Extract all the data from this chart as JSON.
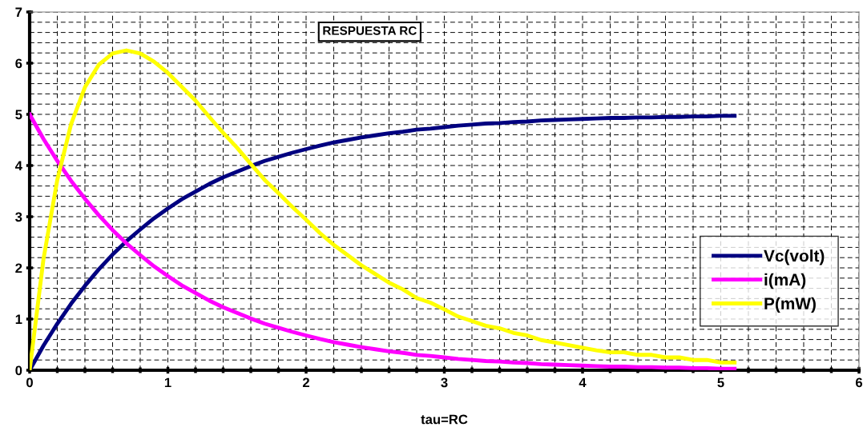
{
  "chart_data": {
    "type": "line",
    "title": "RESPUESTA RC",
    "xlabel": "tau=RC",
    "x": [
      0,
      0.1,
      0.2,
      0.3,
      0.4,
      0.5,
      0.6,
      0.7,
      0.8,
      0.9,
      1.0,
      1.1,
      1.2,
      1.3,
      1.4,
      1.5,
      1.6,
      1.7,
      1.8,
      1.9,
      2.0,
      2.1,
      2.2,
      2.3,
      2.4,
      2.5,
      2.6,
      2.7,
      2.8,
      2.9,
      3.0,
      3.1,
      3.2,
      3.3,
      3.4,
      3.5,
      3.6,
      3.7,
      3.8,
      3.9,
      4.0,
      4.1,
      4.2,
      4.3,
      4.4,
      4.5,
      4.6,
      4.7,
      4.8,
      4.9,
      5.0,
      5.1
    ],
    "series": [
      {
        "name": "Vc(volt)",
        "color": "#000080",
        "values": [
          0,
          0.48,
          0.91,
          1.3,
          1.65,
          1.97,
          2.26,
          2.52,
          2.75,
          2.97,
          3.16,
          3.34,
          3.49,
          3.64,
          3.77,
          3.88,
          3.99,
          4.09,
          4.17,
          4.25,
          4.32,
          4.39,
          4.45,
          4.5,
          4.55,
          4.59,
          4.63,
          4.66,
          4.7,
          4.72,
          4.75,
          4.78,
          4.8,
          4.82,
          4.83,
          4.85,
          4.86,
          4.88,
          4.89,
          4.9,
          4.91,
          4.92,
          4.93,
          4.93,
          4.94,
          4.94,
          4.95,
          4.95,
          4.96,
          4.96,
          4.97,
          4.97
        ]
      },
      {
        "name": "i(mA)",
        "color": "#ff00ff",
        "values": [
          5,
          4.52,
          4.09,
          3.7,
          3.35,
          3.03,
          2.74,
          2.48,
          2.25,
          2.03,
          1.84,
          1.66,
          1.51,
          1.36,
          1.23,
          1.12,
          1.01,
          0.91,
          0.83,
          0.75,
          0.68,
          0.61,
          0.55,
          0.5,
          0.45,
          0.41,
          0.37,
          0.34,
          0.3,
          0.28,
          0.25,
          0.22,
          0.2,
          0.18,
          0.17,
          0.15,
          0.14,
          0.12,
          0.11,
          0.1,
          0.09,
          0.08,
          0.07,
          0.07,
          0.06,
          0.06,
          0.05,
          0.05,
          0.04,
          0.04,
          0.03,
          0.03
        ]
      },
      {
        "name": "P(mW)",
        "color": "#ffff00",
        "values": [
          0,
          2.17,
          3.72,
          4.81,
          5.53,
          5.97,
          6.19,
          6.25,
          6.19,
          6.03,
          5.81,
          5.54,
          5.27,
          4.95,
          4.64,
          4.35,
          4.03,
          3.72,
          3.46,
          3.19,
          2.94,
          2.68,
          2.45,
          2.25,
          2.05,
          1.88,
          1.71,
          1.58,
          1.41,
          1.32,
          1.19,
          1.05,
          0.96,
          0.87,
          0.82,
          0.73,
          0.68,
          0.59,
          0.54,
          0.49,
          0.44,
          0.39,
          0.35,
          0.35,
          0.3,
          0.3,
          0.25,
          0.25,
          0.2,
          0.2,
          0.15,
          0.15
        ]
      }
    ],
    "xlim": [
      0,
      6
    ],
    "xticks": [
      0,
      1,
      2,
      3,
      4,
      5,
      6
    ],
    "ylim": [
      0,
      7
    ],
    "yticks": [
      0,
      1,
      2,
      3,
      4,
      5,
      6,
      7
    ],
    "grid": true,
    "legend": "bottom right",
    "marker": "none",
    "line_style": "solid"
  }
}
